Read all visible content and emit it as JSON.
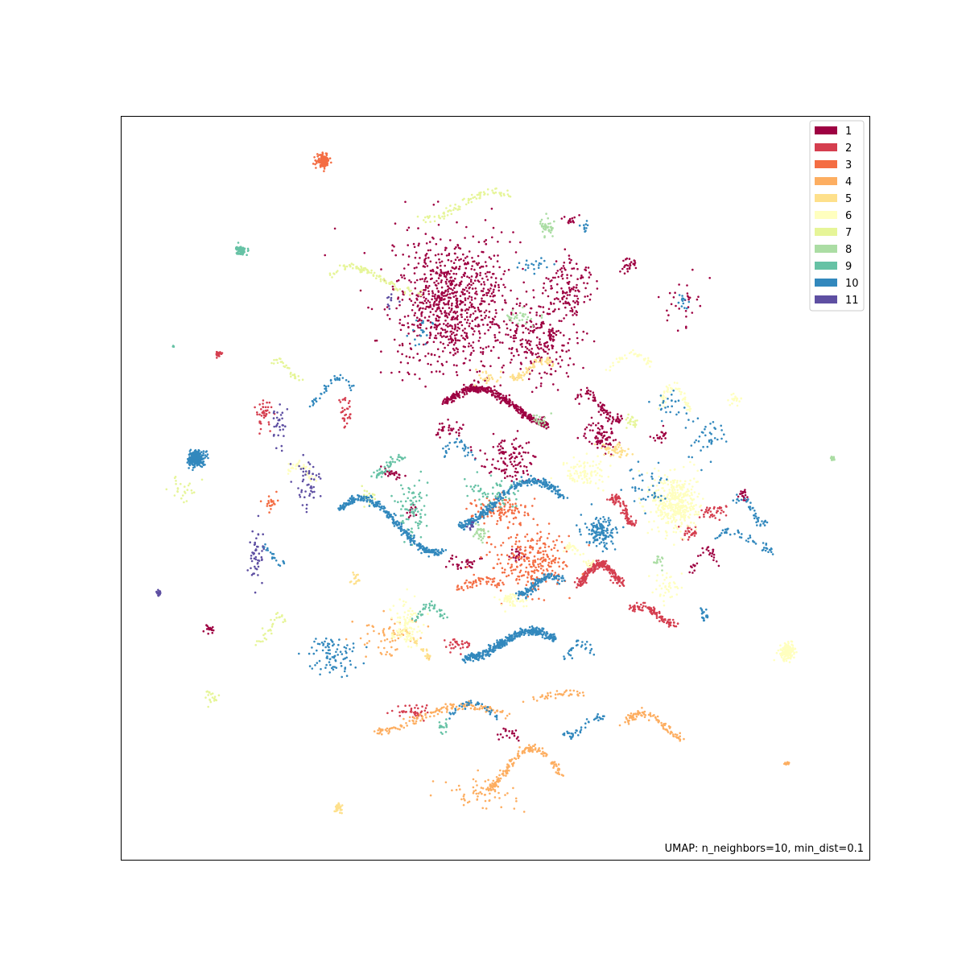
{
  "chart_data": {
    "type": "scatter",
    "title": "",
    "xlabel": "",
    "ylabel": "",
    "axes_visible": false,
    "grid": false,
    "legend_position": "top-right",
    "annotation": "UMAP: n_neighbors=10, min_dist=0.1",
    "categories": [
      "1",
      "2",
      "3",
      "4",
      "5",
      "6",
      "7",
      "8",
      "9",
      "10",
      "11"
    ],
    "colors": [
      "#9e0142",
      "#d53e4f",
      "#f46d43",
      "#fdae61",
      "#fee08b",
      "#ffffbf",
      "#e6f598",
      "#abdda4",
      "#66c2a5",
      "#3288bd",
      "#5e4fa2"
    ],
    "xlim": [
      0,
      100
    ],
    "ylim": [
      0,
      100
    ],
    "series": [
      {
        "name": "1",
        "clusters": [
          [
            44,
            75,
            8,
            9,
            900
          ],
          [
            50,
            61,
            7,
            4,
            350
          ],
          [
            56,
            70,
            5,
            6,
            250
          ],
          [
            60,
            77,
            3,
            4,
            120
          ],
          [
            64,
            57,
            2,
            2,
            80
          ],
          [
            52,
            54,
            4,
            3,
            120
          ],
          [
            64,
            61,
            3,
            3,
            80
          ],
          [
            44,
            58,
            2,
            1,
            30
          ],
          [
            36,
            52,
            2,
            1,
            25
          ],
          [
            72,
            57,
            1,
            1,
            20
          ],
          [
            83,
            49,
            1,
            1,
            20
          ],
          [
            60,
            86,
            1,
            1,
            15
          ],
          [
            68,
            80,
            1,
            1,
            25
          ],
          [
            46,
            40,
            2,
            1,
            30
          ],
          [
            53,
            41,
            1,
            1,
            20
          ],
          [
            12,
            31,
            1,
            1,
            15
          ],
          [
            78,
            40,
            2,
            3,
            30
          ],
          [
            52,
            17,
            2,
            1,
            20
          ],
          [
            39,
            47,
            1,
            1,
            15
          ],
          [
            75,
            75,
            2,
            3,
            30
          ]
        ]
      },
      {
        "name": "2",
        "clusters": [
          [
            64,
            38,
            3,
            3,
            230
          ],
          [
            67,
            47,
            1.5,
            3,
            100
          ],
          [
            71,
            33,
            3,
            2,
            100
          ],
          [
            39,
            20,
            2,
            1,
            40
          ],
          [
            76,
            44,
            1,
            1,
            30
          ],
          [
            13,
            68,
            0.4,
            0.4,
            20
          ],
          [
            30,
            60,
            1,
            2,
            30
          ],
          [
            19,
            60,
            1,
            2,
            40
          ],
          [
            45,
            29,
            2,
            1,
            30
          ],
          [
            79,
            47,
            2,
            1,
            35
          ]
        ]
      },
      {
        "name": "3",
        "clusters": [
          [
            27,
            94,
            0.8,
            0.8,
            150
          ],
          [
            55,
            40,
            5,
            4,
            260
          ],
          [
            51,
            47,
            4,
            2,
            120
          ],
          [
            48,
            37,
            3,
            1,
            50
          ],
          [
            20,
            48,
            1,
            1,
            20
          ]
        ]
      },
      {
        "name": "4",
        "clusters": [
          [
            54,
            12,
            5,
            5,
            160
          ],
          [
            43,
            19,
            9,
            3,
            150
          ],
          [
            71,
            18,
            4,
            3,
            100
          ],
          [
            48,
            9,
            5,
            2,
            60
          ],
          [
            36,
            30,
            4,
            3,
            60
          ],
          [
            58,
            22,
            4,
            1,
            40
          ],
          [
            89,
            13,
            0.3,
            0.3,
            15
          ]
        ]
      },
      {
        "name": "5",
        "clusters": [
          [
            29,
            7,
            0.5,
            0.5,
            30
          ],
          [
            55,
            66,
            3,
            2,
            70
          ],
          [
            66,
            55,
            2,
            1,
            50
          ],
          [
            39,
            29,
            3,
            3,
            50
          ],
          [
            49,
            65,
            2,
            1,
            25
          ],
          [
            31,
            38,
            1,
            1,
            15
          ]
        ]
      },
      {
        "name": "6",
        "clusters": [
          [
            74,
            48,
            3,
            4,
            400
          ],
          [
            89,
            28,
            1,
            1,
            150
          ],
          [
            38,
            32,
            2,
            3,
            100
          ],
          [
            62,
            52,
            3,
            2,
            90
          ],
          [
            52,
            35,
            2,
            1,
            50
          ],
          [
            74,
            62,
            2,
            3,
            60
          ],
          [
            73,
            37,
            2,
            2,
            40
          ],
          [
            68,
            67,
            3,
            2,
            40
          ],
          [
            24,
            52,
            2,
            2,
            40
          ],
          [
            82,
            62,
            1,
            1,
            20
          ],
          [
            61,
            41,
            2,
            2,
            40
          ]
        ]
      },
      {
        "name": "7",
        "clusters": [
          [
            46,
            88,
            6,
            3,
            80
          ],
          [
            34,
            78,
            6,
            3,
            90
          ],
          [
            20,
            31,
            2,
            3,
            30
          ],
          [
            12,
            22,
            1,
            1,
            20
          ],
          [
            22,
            66,
            2,
            2,
            30
          ],
          [
            8,
            50,
            2,
            2,
            25
          ],
          [
            68,
            59,
            1,
            1,
            20
          ],
          [
            33,
            49,
            1,
            1,
            20
          ]
        ]
      },
      {
        "name": "8",
        "clusters": [
          [
            57,
            85,
            1,
            1,
            40
          ],
          [
            95,
            54,
            0.3,
            0.3,
            20
          ],
          [
            53,
            73,
            2,
            1,
            30
          ],
          [
            48,
            44,
            1,
            1,
            30
          ],
          [
            72,
            40,
            1,
            1,
            15
          ],
          [
            56,
            59,
            1,
            1,
            20
          ]
        ]
      },
      {
        "name": "9",
        "clusters": [
          [
            16,
            82,
            0.6,
            0.6,
            80
          ],
          [
            39,
            47,
            2,
            4,
            80
          ],
          [
            36,
            53,
            2,
            2,
            50
          ],
          [
            50,
            49,
            4,
            2,
            60
          ],
          [
            41,
            33,
            2,
            2,
            40
          ],
          [
            7,
            69,
            0.1,
            0.1,
            5
          ],
          [
            43,
            18,
            1,
            1,
            15
          ]
        ]
      },
      {
        "name": "10",
        "clusters": [
          [
            10,
            54,
            1,
            1,
            300
          ],
          [
            52,
            29,
            6,
            3,
            400
          ],
          [
            36,
            45,
            7,
            6,
            300
          ],
          [
            52,
            48,
            7,
            5,
            300
          ],
          [
            64,
            44,
            2,
            2,
            140
          ],
          [
            28,
            28,
            3,
            3,
            90
          ],
          [
            56,
            37,
            3,
            2,
            120
          ],
          [
            47,
            20,
            3,
            2,
            40
          ],
          [
            78,
            57,
            3,
            3,
            40
          ],
          [
            28,
            63,
            3,
            3,
            40
          ],
          [
            83,
            43,
            4,
            2,
            50
          ],
          [
            70,
            50,
            3,
            3,
            40
          ],
          [
            62,
            18,
            3,
            2,
            40
          ],
          [
            20,
            41,
            2,
            2,
            20
          ],
          [
            78,
            33,
            1,
            1,
            20
          ],
          [
            61,
            28,
            2,
            2,
            30
          ],
          [
            84,
            47,
            2,
            3,
            40
          ],
          [
            40,
            71,
            2,
            2,
            20
          ],
          [
            55,
            80,
            2,
            1,
            20
          ],
          [
            75,
            75,
            1,
            1,
            15
          ],
          [
            45,
            55,
            2,
            2,
            30
          ],
          [
            73,
            61,
            2,
            2,
            25
          ],
          [
            62,
            85,
            1,
            1,
            10
          ]
        ]
      },
      {
        "name": "11",
        "clusters": [
          [
            5,
            36,
            0.3,
            0.3,
            25
          ],
          [
            25,
            51,
            2,
            3,
            50
          ],
          [
            18,
            41,
            1,
            4,
            50
          ],
          [
            21,
            59,
            1,
            3,
            30
          ],
          [
            47,
            45,
            0.5,
            0.5,
            10
          ],
          [
            36,
            75,
            1,
            1,
            10
          ]
        ]
      }
    ]
  }
}
